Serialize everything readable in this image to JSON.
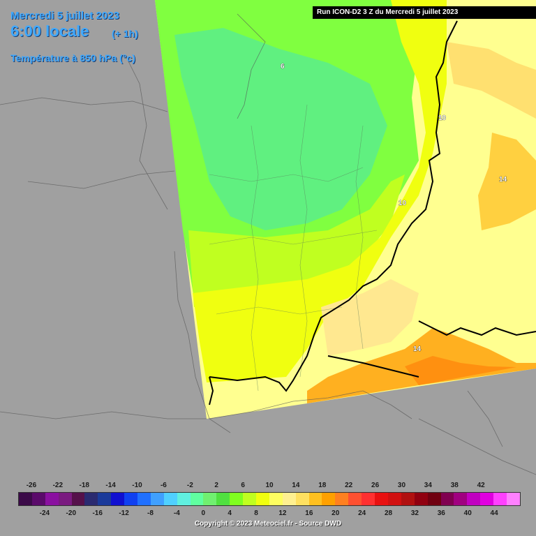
{
  "header": {
    "date": "Mercredi 5 juillet 2023",
    "local_time": "6:00 locale",
    "offset": "(+ 1h)",
    "parameter": "Température à 850 hPa (°c)"
  },
  "run_banner": "Run ICON-D2 3 Z du Mercredi 5 juillet 2023",
  "contour_labels": [
    "6",
    "10",
    "10",
    "14",
    "14"
  ],
  "legend": {
    "top_ticks": [
      "-26",
      "-22",
      "-18",
      "-14",
      "-10",
      "-6",
      "-2",
      "2",
      "6",
      "10",
      "14",
      "18",
      "22",
      "26",
      "30",
      "34",
      "38",
      "42"
    ],
    "bottom_ticks": [
      "-24",
      "-20",
      "-16",
      "-12",
      "-8",
      "-4",
      "0",
      "4",
      "8",
      "12",
      "16",
      "20",
      "24",
      "28",
      "32",
      "36",
      "40",
      "44"
    ],
    "colors": [
      "#3b0a48",
      "#5a0a6a",
      "#8a10a0",
      "#7a1a80",
      "#55104a",
      "#2a2a70",
      "#1a3a9a",
      "#1010d0",
      "#1040f0",
      "#2070ff",
      "#40a0ff",
      "#50d0ff",
      "#60f0e0",
      "#60ffa0",
      "#70f070",
      "#50e040",
      "#80ff20",
      "#c0ff20",
      "#f0ff10",
      "#ffff60",
      "#fff090",
      "#ffe060",
      "#ffc020",
      "#ffa000",
      "#ff8020",
      "#ff5030",
      "#ff3030",
      "#e81010",
      "#d01010",
      "#b01010",
      "#900010",
      "#700010",
      "#800050",
      "#a00080",
      "#c000c0",
      "#e000e0",
      "#ff40ff",
      "#ff80ff"
    ]
  },
  "copyright": "Copyright © 2023 Meteociel.fr - Source DWD"
}
